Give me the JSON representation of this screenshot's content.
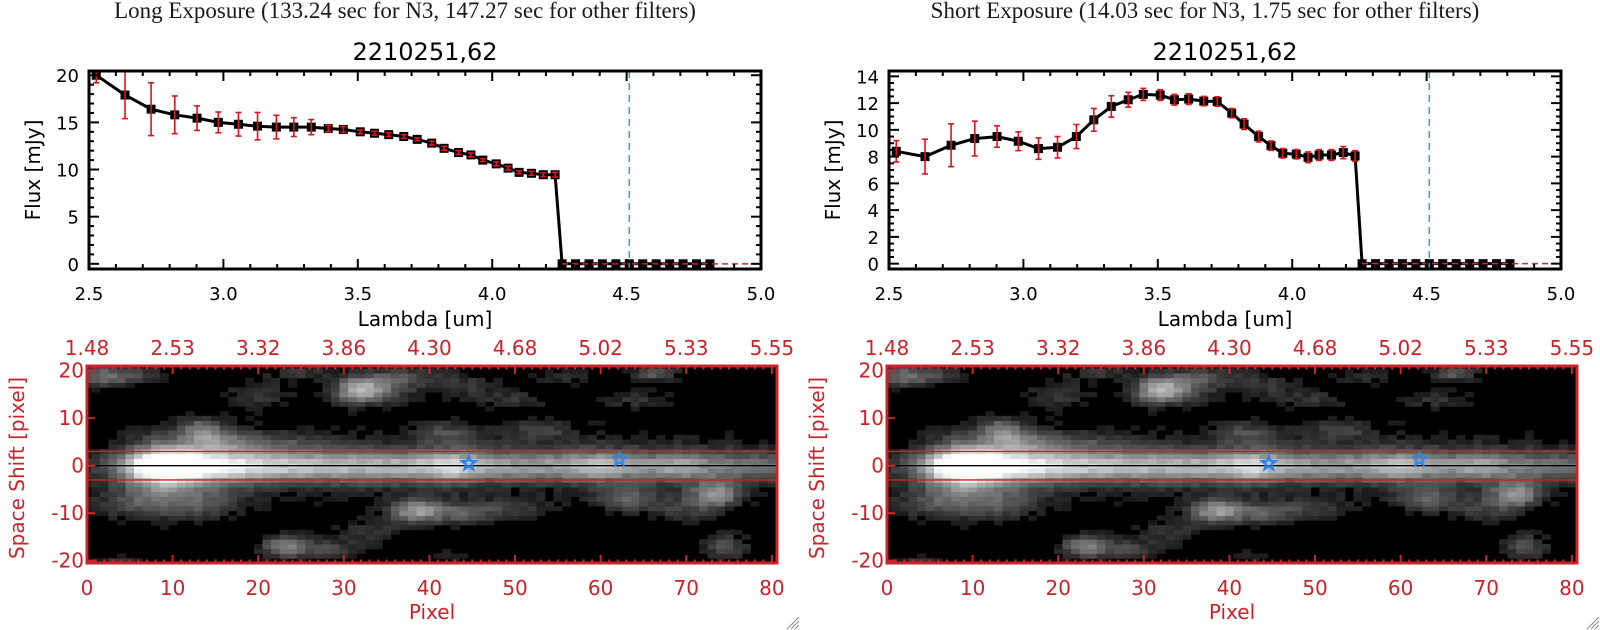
{
  "windows": [
    {
      "exposure_title": "Long Exposure (133.24 sec for N3, 147.27 sec for other filters)"
    },
    {
      "exposure_title": "Short Exposure (14.03 sec for N3, 1.75 sec for other filters)"
    }
  ],
  "colors": {
    "axis": "#000000",
    "error": "#e8101a",
    "zero_line": "#e0202a",
    "reference": "#3a9af0",
    "panel_red": "#cc2229",
    "aperture_red": "#e01818",
    "star_blue": "#2a86e6",
    "image_background": "#000000",
    "grip": "#8a8a8a"
  },
  "chart_data": [
    {
      "type": "line",
      "panel": "long-exposure-spectrum",
      "title": "2210251,62",
      "xlabel": "Lambda [um]",
      "ylabel": "Flux [mJy]",
      "xlim": [
        2.5,
        5.0
      ],
      "ylim": [
        -0.55,
        20.45
      ],
      "xticks": [
        "2.5",
        "3.0",
        "3.5",
        "4.0",
        "4.5",
        "5.0"
      ],
      "xtick_values": [
        2.5,
        3.0,
        3.5,
        4.0,
        4.5,
        5.0
      ],
      "x_minor_step": 0.1,
      "yticks": [
        "0",
        "5",
        "10",
        "15",
        "20"
      ],
      "ytick_values": [
        0,
        5,
        10,
        15,
        20
      ],
      "y_minor_step": 1,
      "grid": false,
      "series": [
        {
          "name": "flux",
          "x": [
            2.527,
            2.634,
            2.731,
            2.819,
            2.902,
            2.981,
            3.056,
            3.127,
            3.197,
            3.262,
            3.327,
            3.39,
            3.446,
            3.509,
            3.562,
            3.615,
            3.671,
            3.721,
            3.775,
            3.821,
            3.875,
            3.921,
            3.965,
            4.015,
            4.059,
            4.1,
            4.146,
            4.19,
            4.234
          ],
          "y": [
            20.0,
            17.9,
            16.4,
            15.8,
            15.45,
            15.0,
            14.8,
            14.6,
            14.5,
            14.5,
            14.5,
            14.35,
            14.25,
            14.0,
            13.85,
            13.7,
            13.5,
            13.2,
            12.8,
            12.25,
            11.8,
            11.55,
            11.0,
            10.6,
            10.15,
            9.7,
            9.6,
            9.45,
            9.45
          ],
          "err": [
            0.8,
            2.5,
            2.8,
            2.0,
            1.3,
            1.1,
            1.25,
            1.45,
            1.25,
            1.0,
            0.8,
            0.35,
            0.3,
            0.2,
            0.2,
            0.2,
            0.2,
            0.15,
            0.2,
            0.2,
            0.2,
            0.2,
            0.15,
            0.2,
            0.2,
            0.15,
            0.2,
            0.2,
            0.25
          ]
        }
      ],
      "masked_points": {
        "x": [
          4.26,
          4.31,
          4.36,
          4.41,
          4.46,
          4.51,
          4.56,
          4.61,
          4.66,
          4.71,
          4.76,
          4.81
        ],
        "y": 0
      },
      "zero_line": {
        "y": 0,
        "from_x": 4.26,
        "style": "dashed"
      },
      "reference_line": {
        "x": 4.51,
        "style": "dashed"
      }
    },
    {
      "type": "line",
      "panel": "short-exposure-spectrum",
      "title": "2210251,62",
      "xlabel": "Lambda [um]",
      "ylabel": "Flux [mJy]",
      "xlim": [
        2.5,
        5.0
      ],
      "ylim": [
        -0.4,
        14.4
      ],
      "xticks": [
        "2.5",
        "3.0",
        "3.5",
        "4.0",
        "4.5",
        "5.0"
      ],
      "xtick_values": [
        2.5,
        3.0,
        3.5,
        4.0,
        4.5,
        5.0
      ],
      "x_minor_step": 0.1,
      "yticks": [
        "0",
        "2",
        "4",
        "6",
        "8",
        "10",
        "12",
        "14"
      ],
      "ytick_values": [
        0,
        2,
        4,
        6,
        8,
        10,
        12,
        14
      ],
      "y_minor_step": 0.5,
      "grid": false,
      "series": [
        {
          "name": "flux",
          "x": [
            2.527,
            2.634,
            2.731,
            2.819,
            2.902,
            2.981,
            3.056,
            3.127,
            3.197,
            3.262,
            3.327,
            3.39,
            3.446,
            3.509,
            3.562,
            3.615,
            3.671,
            3.721,
            3.775,
            3.821,
            3.875,
            3.921,
            3.965,
            4.015,
            4.059,
            4.1,
            4.146,
            4.19,
            4.234
          ],
          "y": [
            8.4,
            8.0,
            8.85,
            9.35,
            9.5,
            9.15,
            8.6,
            8.7,
            9.5,
            10.75,
            11.75,
            12.25,
            12.65,
            12.6,
            12.25,
            12.3,
            12.15,
            12.12,
            11.25,
            10.43,
            9.5,
            8.82,
            8.25,
            8.18,
            7.95,
            8.12,
            8.12,
            8.3,
            8.05
          ],
          "err": [
            0.8,
            1.3,
            1.6,
            1.3,
            0.8,
            0.7,
            0.8,
            0.8,
            0.9,
            0.85,
            0.8,
            0.55,
            0.45,
            0.4,
            0.4,
            0.4,
            0.35,
            0.35,
            0.35,
            0.4,
            0.4,
            0.35,
            0.35,
            0.35,
            0.4,
            0.4,
            0.4,
            0.45,
            0.4
          ]
        }
      ],
      "masked_points": {
        "x": [
          4.26,
          4.31,
          4.36,
          4.41,
          4.46,
          4.51,
          4.56,
          4.61,
          4.66,
          4.71,
          4.76,
          4.81
        ],
        "y": 0
      },
      "zero_line": {
        "y": 0,
        "from_x": 4.26,
        "style": "dashed"
      },
      "reference_line": {
        "x": 4.51,
        "style": "dashed"
      }
    },
    {
      "type": "heatmap",
      "panel": "long-exposure-image",
      "xlabel": "Pixel",
      "ylabel": "Space Shift [pixel]",
      "xlim": [
        0,
        80.6
      ],
      "ylim": [
        -20.5,
        21
      ],
      "xticks": [
        "0",
        "10",
        "20",
        "30",
        "40",
        "50",
        "60",
        "70",
        "80"
      ],
      "xtick_values": [
        0,
        10,
        20,
        30,
        40,
        50,
        60,
        70,
        80
      ],
      "top_xticks": [
        "1.48",
        "2.53",
        "3.32",
        "3.86",
        "4.30",
        "4.68",
        "5.02",
        "5.33",
        "5.55"
      ],
      "yticks": [
        "-20",
        "-10",
        "0",
        "10",
        "20"
      ],
      "ytick_values": [
        -20,
        -10,
        0,
        10,
        20
      ],
      "grid_columns": 81,
      "grid_rows": [
        -21,
        21
      ],
      "aperture_lines": [
        3,
        -3
      ],
      "center_line": 0,
      "stars": [
        {
          "x": 44.6,
          "y": 0.5
        },
        {
          "x": 62.2,
          "y": 1.3
        }
      ],
      "trace": {
        "y": 0,
        "sigma": 2.3,
        "halo_sigma": 6,
        "halo_fraction": 0.25,
        "profile": [
          [
            -1,
            0.1
          ],
          [
            2,
            0.15
          ],
          [
            4,
            0.3
          ],
          [
            6,
            0.6
          ],
          [
            8,
            0.95
          ],
          [
            10,
            1.05
          ],
          [
            12,
            0.95
          ],
          [
            14,
            0.8
          ],
          [
            17,
            0.72
          ],
          [
            20,
            0.68
          ],
          [
            25,
            0.64
          ],
          [
            30,
            0.6
          ],
          [
            35,
            0.58
          ],
          [
            38,
            0.6
          ],
          [
            41,
            0.7
          ],
          [
            43,
            0.72
          ],
          [
            46,
            0.58
          ],
          [
            50,
            0.5
          ],
          [
            54,
            0.5
          ],
          [
            58,
            0.58
          ],
          [
            60,
            0.62
          ],
          [
            63,
            0.52
          ],
          [
            66,
            0.48
          ],
          [
            69,
            0.56
          ],
          [
            72,
            0.45
          ],
          [
            76,
            0.38
          ],
          [
            80,
            0.32
          ]
        ]
      },
      "sources": [
        [
          1.5,
          19,
          0.35,
          2.5,
          1.8
        ],
        [
          6,
          19,
          0.2,
          3,
          1.5
        ],
        [
          20,
          15,
          0.2,
          3,
          2
        ],
        [
          25,
          19.5,
          0.2,
          3,
          1.2
        ],
        [
          31.5,
          16,
          0.6,
          2,
          2
        ],
        [
          35,
          16,
          0.3,
          2.5,
          2
        ],
        [
          37,
          19,
          0.25,
          3,
          1.5
        ],
        [
          44,
          17,
          0.2,
          3,
          2
        ],
        [
          50,
          14,
          0.18,
          3,
          1.5
        ],
        [
          56,
          19,
          0.15,
          3,
          1.5
        ],
        [
          66.5,
          19.5,
          0.35,
          2,
          1.2
        ],
        [
          64,
          14,
          0.18,
          3,
          1.5
        ],
        [
          13.5,
          7.5,
          0.35,
          1.8,
          1.8
        ],
        [
          16,
          5,
          0.2,
          3,
          2
        ],
        [
          42,
          7,
          0.22,
          3,
          1.5
        ],
        [
          53,
          7.5,
          0.2,
          3,
          1.5
        ],
        [
          22,
          5,
          0.15,
          5,
          1.5
        ],
        [
          9,
          -1,
          0.3,
          5,
          4.5
        ],
        [
          6,
          -8,
          0.22,
          4,
          2.5
        ],
        [
          14,
          -8,
          0.2,
          3,
          2
        ],
        [
          23,
          -17,
          0.45,
          2,
          1.8
        ],
        [
          28,
          -17.5,
          0.25,
          2.5,
          1.5
        ],
        [
          33,
          -14,
          0.18,
          3,
          2
        ],
        [
          38.5,
          -9.5,
          0.55,
          2.2,
          1.8
        ],
        [
          44,
          -10,
          0.3,
          2.5,
          1.6
        ],
        [
          50,
          -9,
          0.2,
          3,
          1.5
        ],
        [
          63,
          -7,
          0.3,
          2.5,
          1.8
        ],
        [
          73.5,
          -6,
          0.5,
          2,
          1.8
        ],
        [
          70,
          -9,
          0.2,
          3,
          2
        ],
        [
          74.5,
          -17,
          0.3,
          2,
          2
        ],
        [
          4,
          -20,
          0.2,
          2,
          1
        ],
        [
          42,
          -19,
          0.15,
          2,
          1
        ]
      ]
    },
    {
      "type": "heatmap",
      "panel": "short-exposure-image",
      "xlabel": "Pixel",
      "ylabel": "Space Shift [pixel]",
      "xlim": [
        0,
        80.6
      ],
      "ylim": [
        -20.5,
        21
      ],
      "xticks": [
        "0",
        "10",
        "20",
        "30",
        "40",
        "50",
        "60",
        "70",
        "80"
      ],
      "xtick_values": [
        0,
        10,
        20,
        30,
        40,
        50,
        60,
        70,
        80
      ],
      "top_xticks": [
        "1.48",
        "2.53",
        "3.32",
        "3.86",
        "4.30",
        "4.68",
        "5.02",
        "5.33",
        "5.55"
      ],
      "yticks": [
        "-20",
        "-10",
        "0",
        "10",
        "20"
      ],
      "ytick_values": [
        -20,
        -10,
        0,
        10,
        20
      ],
      "grid_columns": 81,
      "grid_rows": [
        -21,
        21
      ],
      "aperture_lines": [
        3,
        -3
      ],
      "center_line": 0,
      "stars": [
        {
          "x": 44.6,
          "y": 0.5
        },
        {
          "x": 62.2,
          "y": 1.3
        }
      ],
      "trace": {
        "y": 0,
        "sigma": 2.3,
        "halo_sigma": 6,
        "halo_fraction": 0.25,
        "profile": [
          [
            -1,
            0.1
          ],
          [
            2,
            0.15
          ],
          [
            4,
            0.3
          ],
          [
            6,
            0.6
          ],
          [
            8,
            0.95
          ],
          [
            10,
            1.05
          ],
          [
            12,
            0.95
          ],
          [
            14,
            0.8
          ],
          [
            17,
            0.72
          ],
          [
            20,
            0.68
          ],
          [
            25,
            0.64
          ],
          [
            30,
            0.6
          ],
          [
            35,
            0.58
          ],
          [
            38,
            0.6
          ],
          [
            41,
            0.7
          ],
          [
            43,
            0.72
          ],
          [
            46,
            0.58
          ],
          [
            50,
            0.5
          ],
          [
            54,
            0.5
          ],
          [
            58,
            0.58
          ],
          [
            60,
            0.62
          ],
          [
            63,
            0.52
          ],
          [
            66,
            0.48
          ],
          [
            69,
            0.56
          ],
          [
            72,
            0.45
          ],
          [
            76,
            0.38
          ],
          [
            80,
            0.32
          ]
        ]
      },
      "sources": [
        [
          1.5,
          19,
          0.35,
          2.5,
          1.8
        ],
        [
          6,
          19,
          0.2,
          3,
          1.5
        ],
        [
          20,
          15,
          0.2,
          3,
          2
        ],
        [
          25,
          19.5,
          0.2,
          3,
          1.2
        ],
        [
          31.5,
          16,
          0.6,
          2,
          2
        ],
        [
          35,
          16,
          0.3,
          2.5,
          2
        ],
        [
          37,
          19,
          0.25,
          3,
          1.5
        ],
        [
          44,
          17,
          0.2,
          3,
          2
        ],
        [
          50,
          14,
          0.18,
          3,
          1.5
        ],
        [
          56,
          19,
          0.15,
          3,
          1.5
        ],
        [
          66.5,
          19.5,
          0.35,
          2,
          1.2
        ],
        [
          64,
          14,
          0.18,
          3,
          1.5
        ],
        [
          13.5,
          7.5,
          0.35,
          1.8,
          1.8
        ],
        [
          16,
          5,
          0.2,
          3,
          2
        ],
        [
          42,
          7,
          0.22,
          3,
          1.5
        ],
        [
          53,
          7.5,
          0.2,
          3,
          1.5
        ],
        [
          22,
          5,
          0.15,
          5,
          1.5
        ],
        [
          9,
          -1,
          0.3,
          5,
          4.5
        ],
        [
          6,
          -8,
          0.22,
          4,
          2.5
        ],
        [
          14,
          -8,
          0.2,
          3,
          2
        ],
        [
          23,
          -17,
          0.45,
          2,
          1.8
        ],
        [
          28,
          -17.5,
          0.25,
          2.5,
          1.5
        ],
        [
          33,
          -14,
          0.18,
          3,
          2
        ],
        [
          38.5,
          -9.5,
          0.55,
          2.2,
          1.8
        ],
        [
          44,
          -10,
          0.3,
          2.5,
          1.6
        ],
        [
          50,
          -9,
          0.2,
          3,
          1.5
        ],
        [
          63,
          -7,
          0.3,
          2.5,
          1.8
        ],
        [
          73.5,
          -6,
          0.5,
          2,
          1.8
        ],
        [
          70,
          -9,
          0.2,
          3,
          2
        ],
        [
          74.5,
          -17,
          0.3,
          2,
          2
        ],
        [
          4,
          -20,
          0.2,
          2,
          1
        ],
        [
          42,
          -19,
          0.15,
          2,
          1
        ]
      ]
    }
  ]
}
